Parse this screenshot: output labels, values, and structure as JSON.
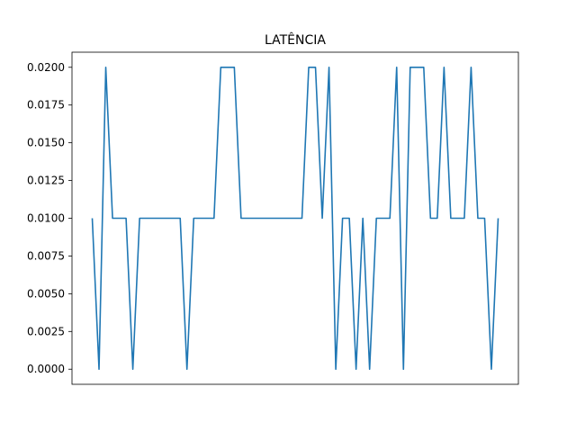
{
  "chart_data": {
    "type": "line",
    "title": "LATÊNCIA",
    "xlabel": "",
    "ylabel": "",
    "ylim": [
      -0.001,
      0.021
    ],
    "yticks": [
      0.0,
      0.0025,
      0.005,
      0.0075,
      0.01,
      0.0125,
      0.015,
      0.0175,
      0.02
    ],
    "ytick_labels": [
      "0.0000",
      "0.0025",
      "0.0050",
      "0.0075",
      "0.0100",
      "0.0125",
      "0.0150",
      "0.0175",
      "0.0200"
    ],
    "xticks_visible": false,
    "grid": false,
    "series": [
      {
        "color": "#1f77b4",
        "values": [
          0.01,
          0.0,
          0.02,
          0.01,
          0.01,
          0.01,
          0.0,
          0.01,
          0.01,
          0.01,
          0.01,
          0.01,
          0.01,
          0.01,
          0.0,
          0.01,
          0.01,
          0.01,
          0.01,
          0.02,
          0.02,
          0.02,
          0.01,
          0.01,
          0.01,
          0.01,
          0.01,
          0.01,
          0.01,
          0.01,
          0.01,
          0.01,
          0.02,
          0.02,
          0.01,
          0.02,
          0.0,
          0.01,
          0.01,
          0.0,
          0.01,
          0.0,
          0.01,
          0.01,
          0.01,
          0.02,
          0.0,
          0.02,
          0.02,
          0.02,
          0.01,
          0.01,
          0.02,
          0.01,
          0.01,
          0.01,
          0.02,
          0.01,
          0.01,
          0.0,
          0.01
        ]
      }
    ]
  }
}
